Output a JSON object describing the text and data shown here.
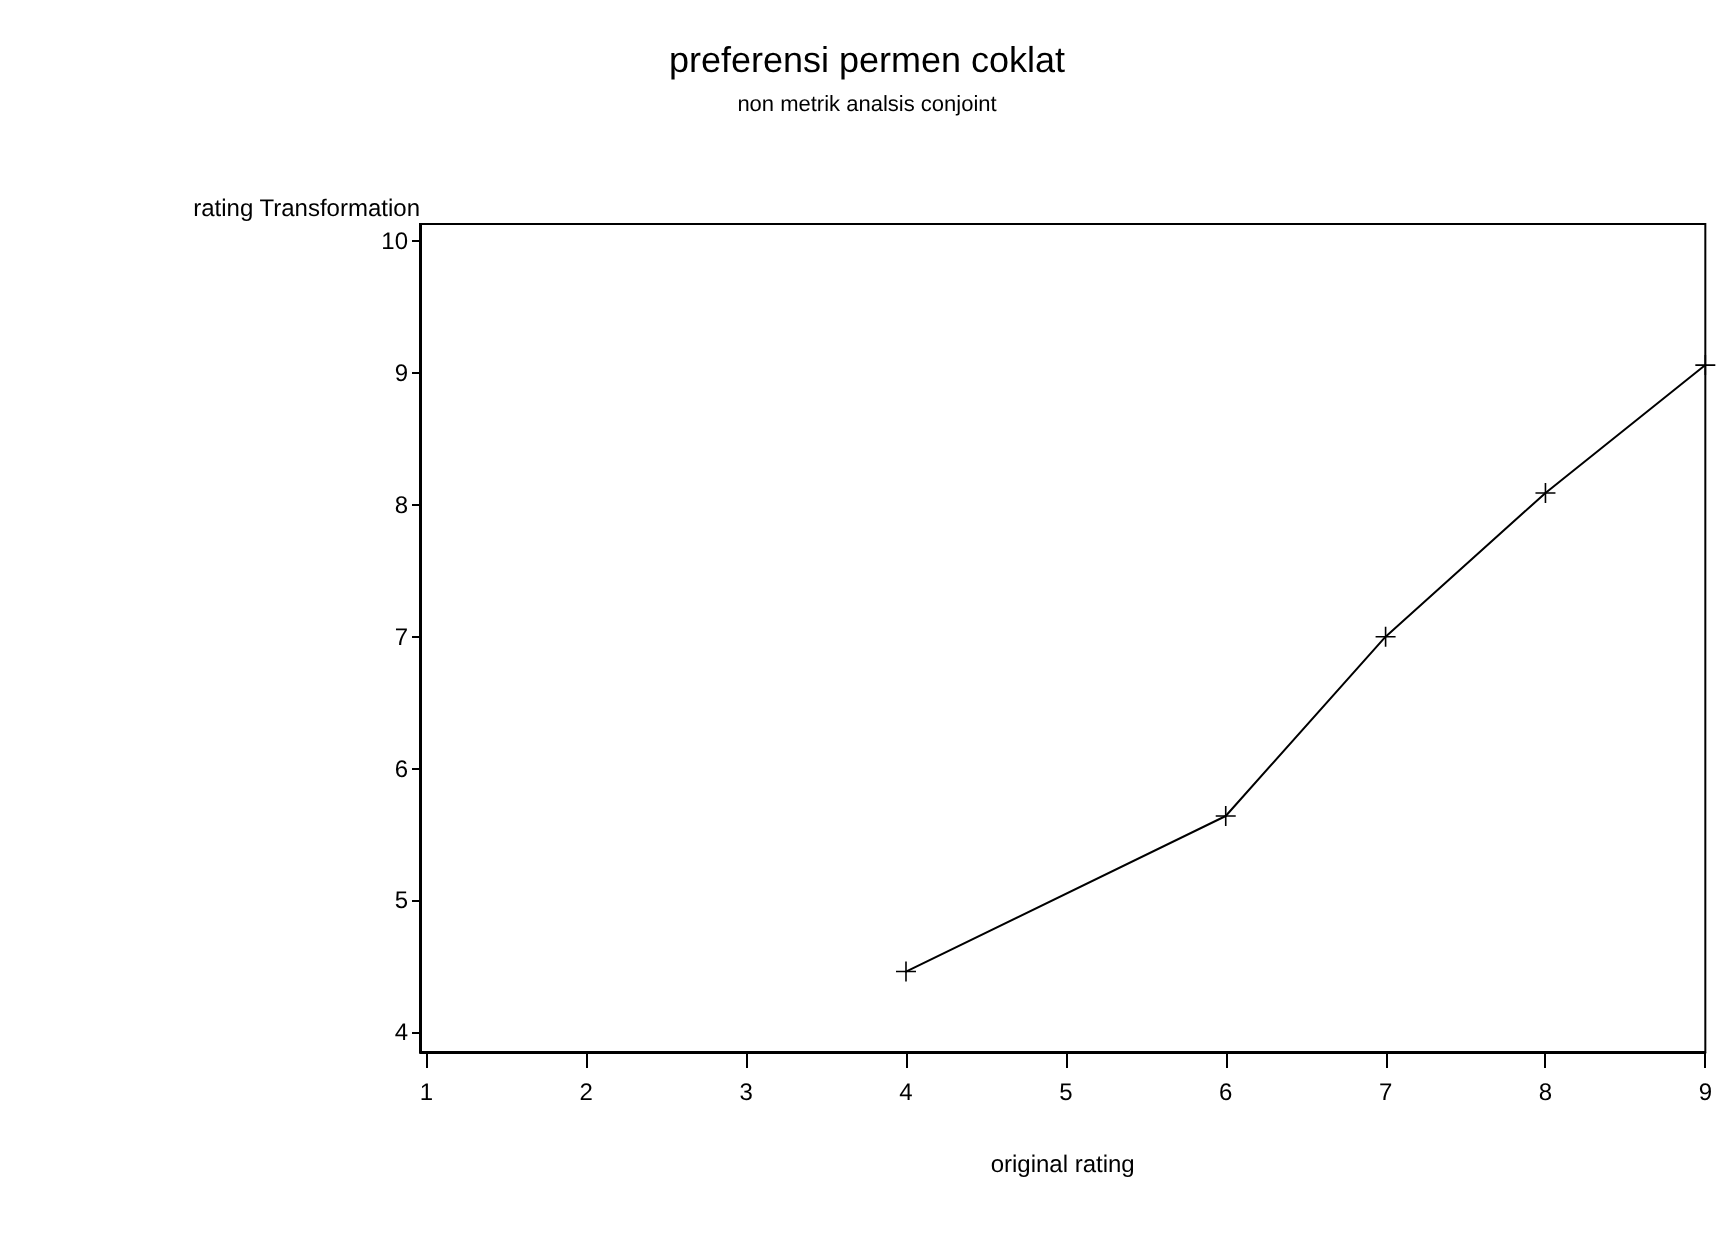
{
  "chart_data": {
    "type": "line",
    "title": "preferensi permen coklat",
    "subtitle": "non metrik analsis conjoint",
    "xlabel": "original rating",
    "ylabel": "rating Transformation",
    "x": [
      4,
      6,
      7,
      8,
      9
    ],
    "values": [
      4.46,
      5.64,
      7.0,
      8.09,
      9.06
    ],
    "color": "#000000",
    "xlim": [
      0.96,
      9
    ],
    "xticks": [
      1,
      2,
      3,
      4,
      5,
      6,
      7,
      8,
      9
    ],
    "ylim": [
      3.85,
      10.13
    ],
    "yticks": [
      4,
      5,
      6,
      7,
      8,
      9,
      10
    ],
    "marker": "cross",
    "line_style": "solid",
    "grid": false
  }
}
